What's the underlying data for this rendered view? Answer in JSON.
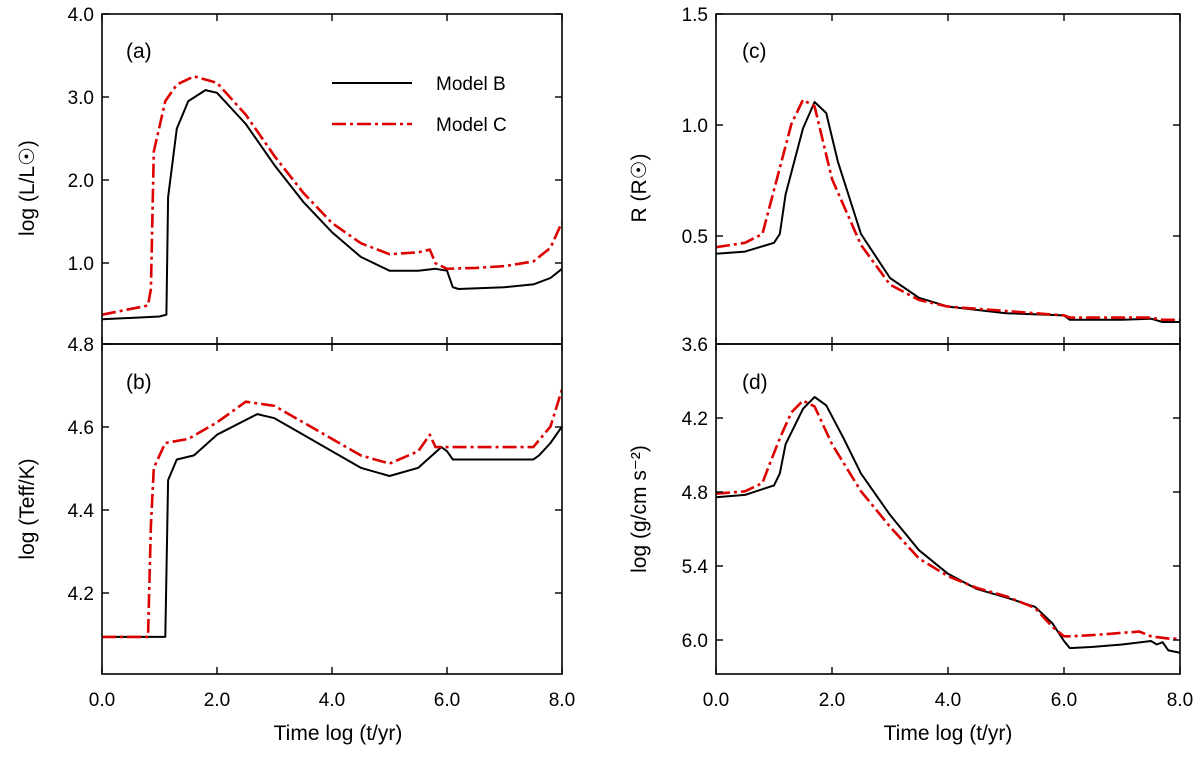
{
  "legend": {
    "model_b": "Model B",
    "model_c": "Model C",
    "model_b_color": "#000000",
    "model_c_color": "#dd0000",
    "model_b_style": "solid",
    "model_c_style": "dash-dot"
  },
  "panel_labels": {
    "a": "(a)",
    "b": "(b)",
    "c": "(c)",
    "d": "(d)"
  },
  "x_axis": {
    "label": "Time  log (t/yr)",
    "ticks": [
      "0.0",
      "2.0",
      "4.0",
      "6.0",
      "8.0"
    ]
  },
  "y_axes": {
    "a": {
      "label": "log (L/L☉)",
      "ticks": [
        "4.0",
        "3.0",
        "2.0",
        "1.0"
      ]
    },
    "b": {
      "label": "log (Teff/K)",
      "ticks": [
        "4.8",
        "4.6",
        "4.4",
        "4.2"
      ]
    },
    "c": {
      "label": "R (R☉)",
      "ticks": [
        "1.5",
        "1.0",
        "0.5"
      ]
    },
    "d": {
      "label": "log (g/cm s⁻²)",
      "ticks": [
        "3.6",
        "4.2",
        "4.8",
        "5.4",
        "6.0"
      ]
    }
  },
  "chart_data": [
    {
      "panel": "a",
      "type": "line",
      "xlim": [
        0,
        8
      ],
      "ylim": [
        0.4,
        4.0
      ],
      "series": [
        {
          "name": "Model B",
          "x": [
            0,
            1.0,
            1.12,
            1.15,
            1.3,
            1.5,
            1.8,
            2.0,
            2.5,
            3.0,
            3.5,
            4.0,
            4.5,
            5.0,
            5.5,
            5.8,
            6.0,
            6.1,
            6.2,
            7.0,
            7.5,
            7.8,
            8.0
          ],
          "y": [
            0.67,
            0.7,
            0.72,
            2.0,
            2.75,
            3.05,
            3.17,
            3.14,
            2.8,
            2.35,
            1.95,
            1.62,
            1.35,
            1.2,
            1.2,
            1.22,
            1.2,
            1.02,
            1.0,
            1.02,
            1.05,
            1.12,
            1.22
          ]
        },
        {
          "name": "Model C",
          "x": [
            0,
            0.8,
            0.85,
            0.9,
            1.1,
            1.3,
            1.6,
            2.0,
            2.5,
            3.0,
            3.5,
            4.0,
            4.5,
            5.0,
            5.5,
            5.7,
            5.8,
            6.0,
            6.5,
            7.0,
            7.5,
            7.8,
            8.0
          ],
          "y": [
            0.72,
            0.82,
            1.0,
            2.5,
            3.05,
            3.23,
            3.32,
            3.25,
            2.9,
            2.45,
            2.05,
            1.72,
            1.5,
            1.38,
            1.4,
            1.43,
            1.28,
            1.22,
            1.23,
            1.25,
            1.3,
            1.45,
            1.73
          ]
        }
      ]
    },
    {
      "panel": "b",
      "type": "line",
      "xlim": [
        0,
        8
      ],
      "ylim": [
        4.0,
        4.8
      ],
      "series": [
        {
          "name": "Model B",
          "x": [
            0,
            1.1,
            1.15,
            1.3,
            1.6,
            2.0,
            2.7,
            3.0,
            3.5,
            4.0,
            4.5,
            5.0,
            5.5,
            5.9,
            6.0,
            6.1,
            6.2,
            7.0,
            7.5,
            7.6,
            7.8,
            8.0
          ],
          "y": [
            4.09,
            4.09,
            4.47,
            4.52,
            4.53,
            4.58,
            4.63,
            4.62,
            4.58,
            4.54,
            4.5,
            4.48,
            4.5,
            4.55,
            4.54,
            4.52,
            4.52,
            4.52,
            4.52,
            4.53,
            4.56,
            4.6
          ]
        },
        {
          "name": "Model C",
          "x": [
            0,
            0.8,
            0.85,
            0.9,
            1.1,
            1.5,
            2.0,
            2.5,
            3.0,
            3.5,
            4.0,
            4.5,
            5.0,
            5.5,
            5.7,
            5.8,
            6.0,
            6.5,
            7.0,
            7.5,
            7.8,
            8.0
          ],
          "y": [
            4.09,
            4.09,
            4.36,
            4.5,
            4.56,
            4.57,
            4.61,
            4.66,
            4.65,
            4.61,
            4.57,
            4.53,
            4.51,
            4.54,
            4.58,
            4.55,
            4.55,
            4.55,
            4.55,
            4.55,
            4.6,
            4.69
          ]
        }
      ]
    },
    {
      "panel": "c",
      "type": "line",
      "xlim": [
        0,
        8
      ],
      "ylim": [
        0.0,
        1.5
      ],
      "series": [
        {
          "name": "Model B",
          "x": [
            0,
            0.5,
            1.0,
            1.1,
            1.2,
            1.5,
            1.7,
            1.9,
            2.1,
            2.5,
            3.0,
            3.5,
            4.0,
            5.0,
            6.0,
            6.1,
            7.0,
            7.5,
            7.7,
            8.0
          ],
          "y": [
            0.41,
            0.42,
            0.46,
            0.5,
            0.68,
            0.98,
            1.1,
            1.05,
            0.83,
            0.5,
            0.3,
            0.21,
            0.17,
            0.14,
            0.13,
            0.11,
            0.11,
            0.115,
            0.1,
            0.1
          ]
        },
        {
          "name": "Model C",
          "x": [
            0,
            0.5,
            0.8,
            0.9,
            1.1,
            1.3,
            1.5,
            1.7,
            2.0,
            2.5,
            3.0,
            3.5,
            4.0,
            5.0,
            6.0,
            6.1,
            7.0,
            7.5,
            7.7,
            8.0
          ],
          "y": [
            0.44,
            0.46,
            0.5,
            0.6,
            0.8,
            1.0,
            1.11,
            1.08,
            0.75,
            0.45,
            0.27,
            0.2,
            0.17,
            0.15,
            0.13,
            0.12,
            0.12,
            0.12,
            0.11,
            0.11
          ]
        }
      ]
    },
    {
      "panel": "d",
      "type": "line",
      "xlim": [
        0,
        8
      ],
      "ylim": [
        6.4,
        3.6
      ],
      "series": [
        {
          "name": "Model B",
          "x": [
            0,
            0.5,
            1.0,
            1.1,
            1.2,
            1.5,
            1.7,
            1.9,
            2.2,
            2.5,
            3.0,
            3.5,
            4.0,
            4.5,
            5.0,
            5.5,
            5.8,
            6.0,
            6.1,
            6.5,
            7.0,
            7.5,
            7.6,
            7.7,
            7.8,
            8.0
          ],
          "y": [
            4.9,
            4.88,
            4.8,
            4.7,
            4.45,
            4.15,
            4.05,
            4.12,
            4.4,
            4.7,
            5.05,
            5.35,
            5.55,
            5.68,
            5.75,
            5.83,
            5.97,
            6.12,
            6.18,
            6.17,
            6.15,
            6.12,
            6.15,
            6.13,
            6.2,
            6.22
          ]
        },
        {
          "name": "Model C",
          "x": [
            0,
            0.5,
            0.8,
            0.9,
            1.1,
            1.3,
            1.5,
            1.7,
            2.0,
            2.5,
            3.0,
            3.5,
            4.0,
            4.5,
            5.0,
            5.5,
            5.8,
            6.0,
            6.1,
            6.5,
            7.0,
            7.3,
            7.5,
            7.8,
            8.0
          ],
          "y": [
            4.87,
            4.85,
            4.78,
            4.65,
            4.4,
            4.18,
            4.08,
            4.13,
            4.45,
            4.85,
            5.15,
            5.42,
            5.57,
            5.67,
            5.74,
            5.84,
            6.0,
            6.08,
            6.08,
            6.07,
            6.05,
            6.04,
            6.08,
            6.1,
            6.1
          ]
        }
      ]
    }
  ]
}
